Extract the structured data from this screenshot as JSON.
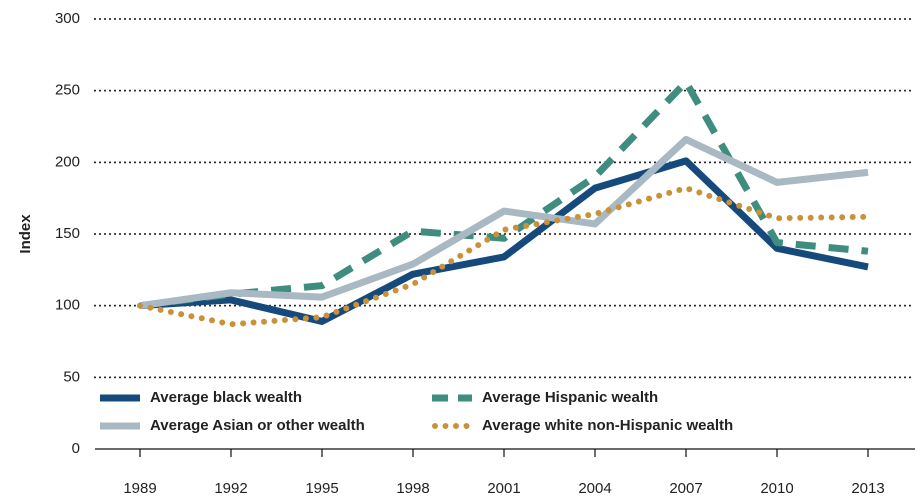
{
  "chart_data": {
    "type": "line",
    "ylabel": "Index",
    "categories": [
      "1989",
      "1992",
      "1995",
      "1998",
      "2001",
      "2004",
      "2007",
      "2010",
      "2013"
    ],
    "ylim": [
      0,
      300
    ],
    "yticks": [
      0,
      50,
      100,
      150,
      200,
      250,
      300
    ],
    "grid": true,
    "legend": "lower left",
    "series": [
      {
        "name": "Average black wealth",
        "color": "#174a7c",
        "dash": "solid",
        "values": [
          100,
          104,
          89,
          122,
          134,
          182,
          201,
          140,
          127
        ]
      },
      {
        "name": "Average Hispanic wealth",
        "color": "#3f8d7e",
        "dash": "dashed",
        "values": [
          100,
          108,
          114,
          152,
          147,
          190,
          256,
          144,
          138
        ]
      },
      {
        "name": "Average Asian or other wealth",
        "color": "#a9b9c3",
        "dash": "solid",
        "values": [
          100,
          109,
          106,
          129,
          166,
          157,
          216,
          186,
          193
        ]
      },
      {
        "name": "Average white non-Hispanic wealth",
        "color": "#c9913a",
        "dash": "dotted",
        "values": [
          100,
          87,
          92,
          115,
          153,
          164,
          182,
          161,
          162
        ]
      }
    ]
  }
}
